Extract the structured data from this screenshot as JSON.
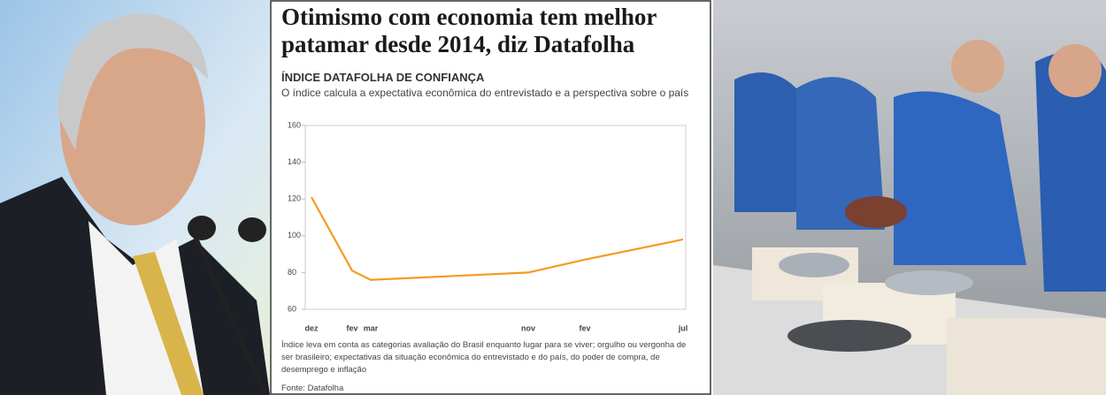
{
  "chart_data": {
    "type": "line",
    "title": "Otimismo com economia tem melhor patamar desde 2014, diz Datafolha",
    "subtitle": "ÍNDICE DATAFOLHA DE CONFIANÇA",
    "description": "O índice calcula a expectativa econômica do entrevistado e a perspectiva sobre o país",
    "note": "Índice leva em conta as categorias avaliação do Brasil enquanto lugar para se viver; orgulho ou vergonha de ser brasileiro; expectativas da situação econômica do entrevistado e do país, do poder de compra, de desemprego e inflação",
    "source": "Fonte: Datafolha",
    "categories": [
      "dez",
      "fev",
      "mar",
      "nov",
      "fev",
      "jul"
    ],
    "values": [
      121,
      81,
      76,
      80,
      87,
      98
    ],
    "color": "#f39c1f",
    "ylim": [
      60,
      160
    ],
    "yticks": [
      60,
      80,
      100,
      120,
      140,
      160
    ]
  }
}
